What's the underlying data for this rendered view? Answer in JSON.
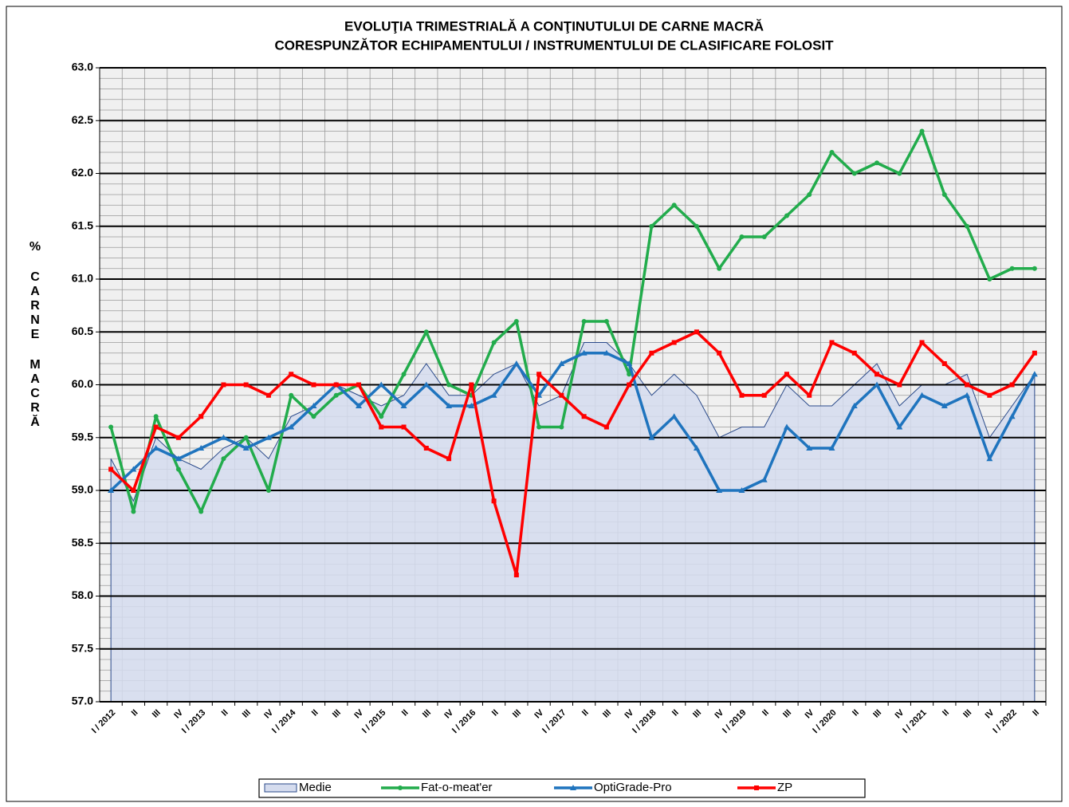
{
  "chart_data": {
    "type": "line",
    "title": [
      "EVOLUŢIA TRIMESTRIALĂ A CONŢINUTULUI DE CARNE MACRĂ",
      "CORESPUNZĂTOR  ECHIPAMENTULUI / INSTRUMENTULUI DE CLASIFICARE FOLOSIT"
    ],
    "ylabel": "% CARNE MACRĂ",
    "categories": [
      "I / 2012",
      "II",
      "III",
      "IV",
      "I / 2013",
      "II",
      "III",
      "IV",
      "I / 2014",
      "II",
      "III",
      "IV",
      "I / 2015",
      "II",
      "III",
      "IV",
      "I / 2016",
      "II",
      "III",
      "IV",
      "I / 2017",
      "II",
      "III",
      "IV",
      "I / 2018",
      "II",
      "III",
      "IV",
      "I / 2019",
      "II",
      "III",
      "IV",
      "I / 2020",
      "II",
      "III",
      "IV",
      "I / 2021",
      "II",
      "III",
      "IV",
      "I / 2022",
      "II"
    ],
    "series": [
      {
        "name": "Medie",
        "kind": "area",
        "color": "#d5dcee",
        "values": [
          59.3,
          58.9,
          59.5,
          59.3,
          59.2,
          59.4,
          59.5,
          59.3,
          59.7,
          59.8,
          60.0,
          59.9,
          59.8,
          59.9,
          60.2,
          59.9,
          59.9,
          60.1,
          60.2,
          59.8,
          59.9,
          60.4,
          60.4,
          60.2,
          59.9,
          60.1,
          59.9,
          59.5,
          59.6,
          59.6,
          60.0,
          59.8,
          59.8,
          60.0,
          60.2,
          59.8,
          60.0,
          60.0,
          60.1,
          59.5,
          59.8,
          60.1
        ]
      },
      {
        "name": "Fat-o-meat'er",
        "color": "#22ac4c",
        "marker": "circle",
        "values": [
          59.6,
          58.8,
          59.7,
          59.2,
          58.8,
          59.3,
          59.5,
          59.0,
          59.9,
          59.7,
          59.9,
          60.0,
          59.7,
          60.1,
          60.5,
          60.0,
          59.9,
          60.4,
          60.6,
          59.6,
          59.6,
          60.6,
          60.6,
          60.1,
          61.5,
          61.7,
          61.5,
          61.1,
          61.4,
          61.4,
          61.6,
          61.8,
          62.2,
          62.0,
          62.1,
          62.0,
          62.4,
          61.8,
          61.5,
          61.0,
          61.1,
          61.1
        ]
      },
      {
        "name": "OptiGrade-Pro",
        "color": "#1f74be",
        "marker": "triangle",
        "values": [
          59.0,
          59.2,
          59.4,
          59.3,
          59.4,
          59.5,
          59.4,
          59.5,
          59.6,
          59.8,
          60.0,
          59.8,
          60.0,
          59.8,
          60.0,
          59.8,
          59.8,
          59.9,
          60.2,
          59.9,
          60.2,
          60.3,
          60.3,
          60.2,
          59.5,
          59.7,
          59.4,
          59.0,
          59.0,
          59.1,
          59.6,
          59.4,
          59.4,
          59.8,
          60.0,
          59.6,
          59.9,
          59.8,
          59.9,
          59.3,
          59.7,
          60.1
        ]
      },
      {
        "name": "ZP",
        "color": "#ff0000",
        "marker": "square",
        "values": [
          59.2,
          59.0,
          59.6,
          59.5,
          59.7,
          60.0,
          60.0,
          59.9,
          60.1,
          60.0,
          60.0,
          60.0,
          59.6,
          59.6,
          59.4,
          59.3,
          60.0,
          58.9,
          58.2,
          60.1,
          59.9,
          59.7,
          59.6,
          60.0,
          60.3,
          60.4,
          60.5,
          60.3,
          59.9,
          59.9,
          60.1,
          59.9,
          60.4,
          60.3,
          60.1,
          60.0,
          60.4,
          60.2,
          60.0,
          59.9,
          60.0,
          60.3
        ]
      }
    ],
    "ylim": [
      57,
      63
    ],
    "yticks": [
      {
        "value": 57,
        "label": "57.0"
      },
      57.5,
      {
        "value": 58,
        "label": "58.0"
      },
      58.5,
      {
        "value": 59,
        "label": "59.0"
      },
      59.5,
      {
        "value": 60,
        "label": "60.0"
      },
      60.5,
      {
        "value": 61,
        "label": "61.0"
      },
      61.5,
      {
        "value": 62,
        "label": "62.0"
      },
      62.5,
      {
        "value": 63,
        "label": "63.0"
      }
    ],
    "grid": true,
    "legend": "bottom"
  }
}
